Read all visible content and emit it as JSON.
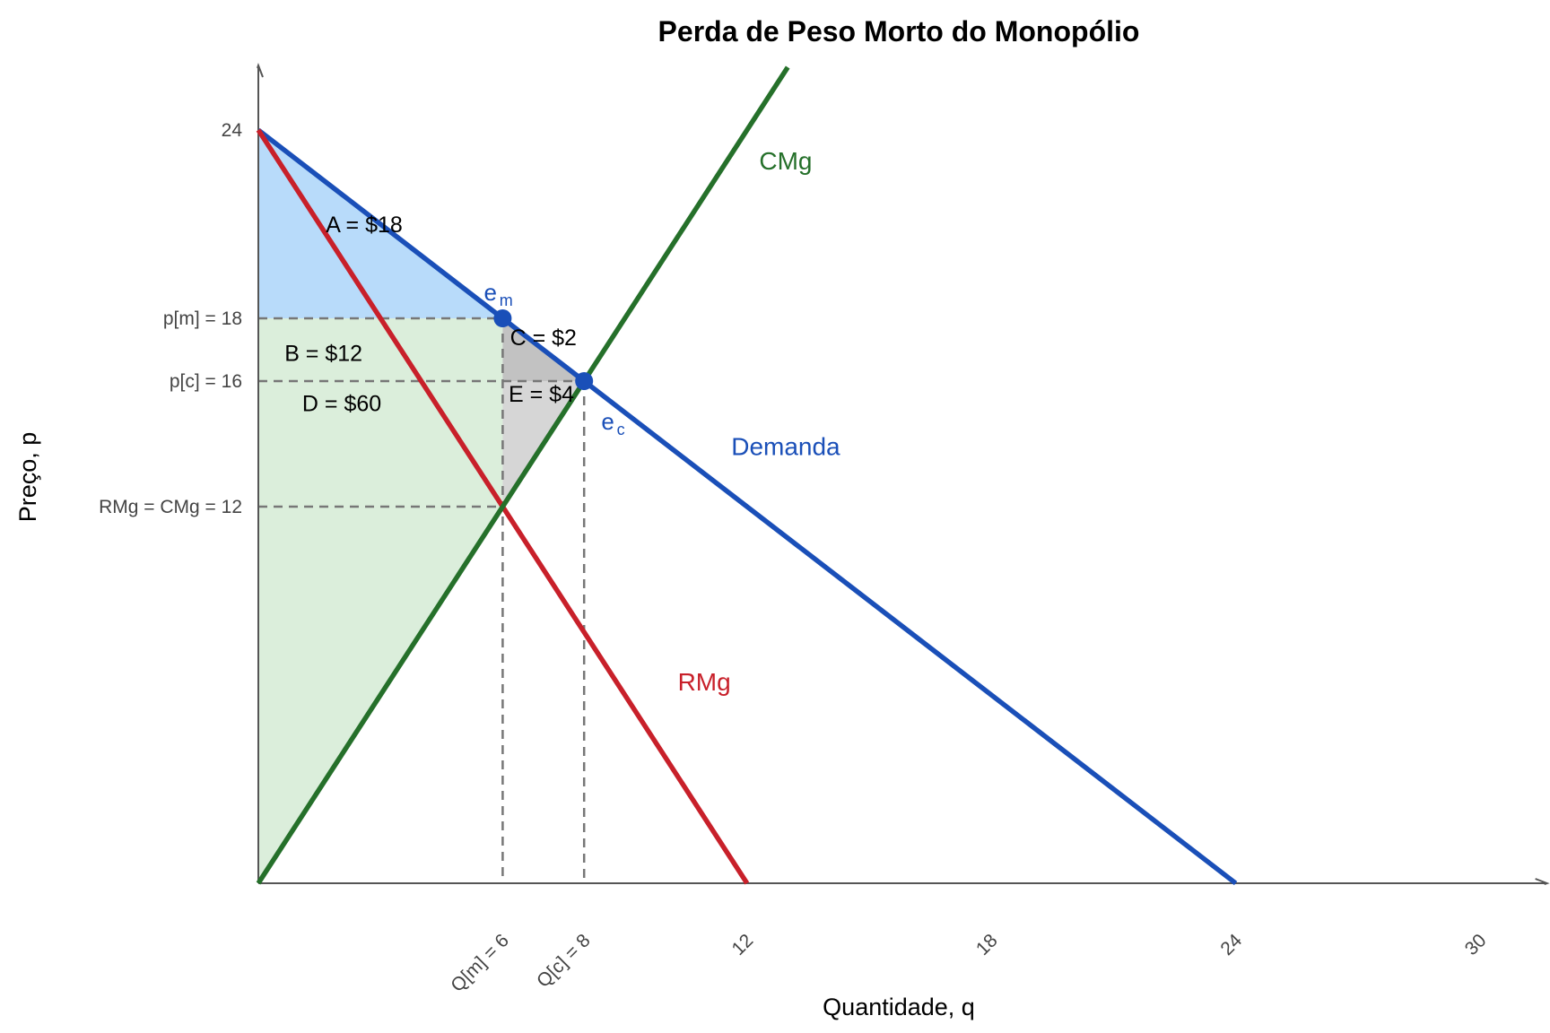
{
  "chart_data": {
    "type": "line",
    "title": "Perda de Peso Morto do Monopólio",
    "xlabel": "Quantidade, q",
    "ylabel": "Preço, p",
    "xlim": [
      0,
      31.6
    ],
    "ylim": [
      0,
      26
    ],
    "grid": false,
    "colors": {
      "demand": "#1a4fb8",
      "mr": "#c8202a",
      "mc": "#25702a",
      "fillA": "#b8dbfa",
      "fillBD": "#dbeedb",
      "fillC": "#c2c2c2",
      "fillE": "#d6d6d6",
      "axis": "#555555",
      "guide": "#777777"
    },
    "series": [
      {
        "name": "Demanda",
        "x": [
          0,
          24
        ],
        "y": [
          24,
          0
        ]
      },
      {
        "name": "RMg",
        "x": [
          0,
          12
        ],
        "y": [
          24,
          0
        ]
      },
      {
        "name": "CMg",
        "x": [
          0,
          13
        ],
        "y": [
          0,
          26
        ]
      }
    ],
    "points": [
      {
        "name": "e_m",
        "label": "e",
        "sub": "m",
        "q": 6,
        "p": 18,
        "lq": 5.7,
        "lp": 18.8
      },
      {
        "name": "e_c",
        "label": "e",
        "sub": "c",
        "q": 8,
        "p": 16,
        "lq": 7.7,
        "lp": 15.2
      }
    ],
    "x_ticks": [
      {
        "value": 6,
        "label": "Q[m] = 6"
      },
      {
        "value": 8,
        "label": "Q[c] = 8"
      },
      {
        "value": 12,
        "label": "12"
      },
      {
        "value": 18,
        "label": "18"
      },
      {
        "value": 24,
        "label": "24"
      },
      {
        "value": 30,
        "label": "30"
      }
    ],
    "y_ticks": [
      {
        "value": 24,
        "label": "24"
      },
      {
        "value": 18,
        "label": "p[m] = 18"
      },
      {
        "value": 16,
        "label": "p[c] = 16"
      },
      {
        "value": 12,
        "label": "RMg = CMg = 12"
      }
    ],
    "areas": [
      {
        "name": "A",
        "label": "A = $18",
        "value": 18,
        "lq": 2.6,
        "lp": 21.0
      },
      {
        "name": "B",
        "label": "B = $12",
        "value": 12,
        "lq": 1.6,
        "lp": 16.9
      },
      {
        "name": "C",
        "label": "C = $2",
        "value": 2,
        "lq": 7.0,
        "lp": 17.4
      },
      {
        "name": "D",
        "label": "D = $60",
        "value": 60,
        "lq": 2.05,
        "lp": 15.3
      },
      {
        "name": "E",
        "label": "E = $4",
        "value": 4,
        "lq": 6.95,
        "lp": 15.6
      }
    ],
    "curve_labels": [
      {
        "name": "CMg",
        "label": "CMg",
        "lq": 12.95,
        "lp": 23.0,
        "color": "#25702a"
      },
      {
        "name": "Demanda",
        "label": "Demanda",
        "lq": 12.95,
        "lp": 13.9,
        "color": "#1a4fb8"
      },
      {
        "name": "RMg",
        "label": "RMg",
        "lq": 10.95,
        "lp": 6.4,
        "color": "#c8202a"
      }
    ]
  }
}
